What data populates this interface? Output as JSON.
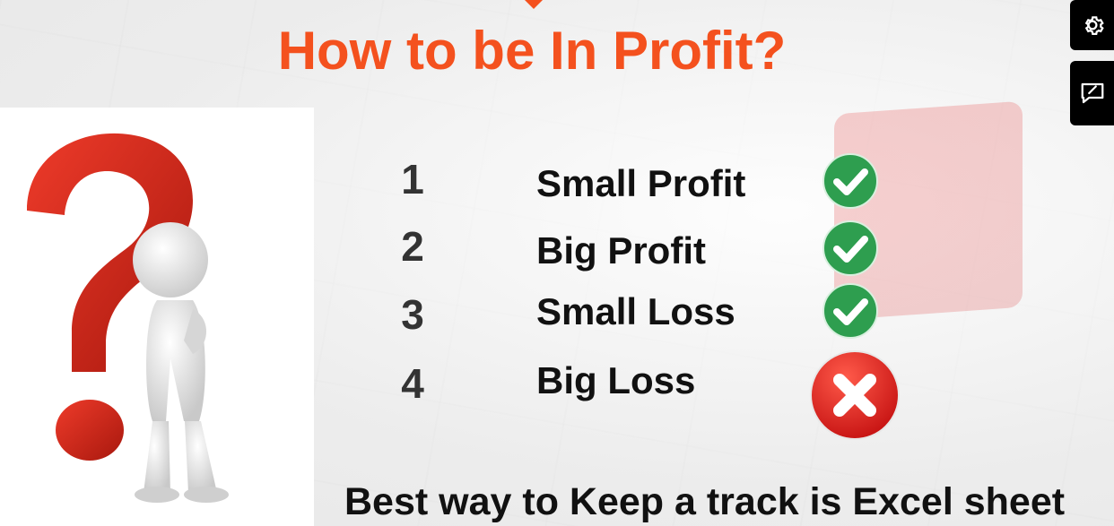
{
  "slide": {
    "title": "How to be In Profit?",
    "items": [
      {
        "number": "1",
        "label": "Small Profit",
        "status": "check-icon"
      },
      {
        "number": "2",
        "label": "Big Profit",
        "status": "check-icon"
      },
      {
        "number": "3",
        "label": "Small Loss",
        "status": "check-icon"
      },
      {
        "number": "4",
        "label": "Big Loss",
        "status": "cross-icon"
      }
    ],
    "footer": "Best way to Keep a track is Excel sheet"
  },
  "colors": {
    "title": "#f4511e",
    "check": "#2e9e4f",
    "cross": "#e02020",
    "question_mark": "#d42a1c"
  },
  "controls": [
    {
      "icon": "gear-icon"
    },
    {
      "icon": "feedback-icon"
    }
  ]
}
